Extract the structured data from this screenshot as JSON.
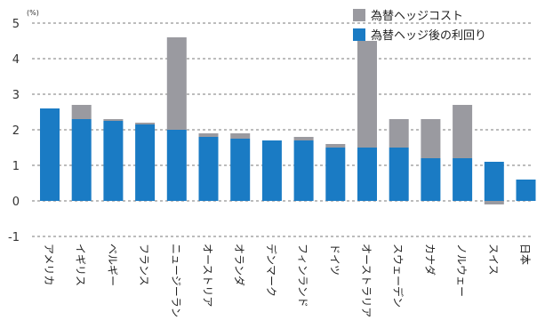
{
  "chart_data": {
    "type": "bar",
    "stacked": true,
    "unit_label": "(%)",
    "categories": [
      "アメリカ",
      "イギリス",
      "ベルギー",
      "フランス",
      "ニュージーランド",
      "オーストリア",
      "オランダ",
      "デンマーク",
      "フィンランド",
      "ドイツ",
      "オーストラリア",
      "スウェーデン",
      "カナダ",
      "ノルウェー",
      "スイス",
      "日本"
    ],
    "series": [
      {
        "name": "為替ヘッジ後の利回り",
        "color": "#1a7bc4",
        "values": [
          2.6,
          2.3,
          2.25,
          2.15,
          2.0,
          1.8,
          1.75,
          1.7,
          1.7,
          1.5,
          1.5,
          1.5,
          1.2,
          1.2,
          1.1,
          0.6
        ]
      },
      {
        "name": "為替ヘッジコスト",
        "color": "#9a9aa0",
        "values": [
          0.0,
          0.4,
          0.05,
          0.05,
          2.6,
          0.1,
          0.15,
          0.0,
          0.1,
          0.1,
          3.0,
          0.8,
          1.1,
          1.5,
          -0.1,
          0.0
        ]
      }
    ],
    "ylim": [
      -1,
      5
    ],
    "yticks": [
      -1,
      0,
      1,
      2,
      3,
      4,
      5
    ],
    "grid": "horizontal-dashed",
    "legend_position": "top-right"
  }
}
